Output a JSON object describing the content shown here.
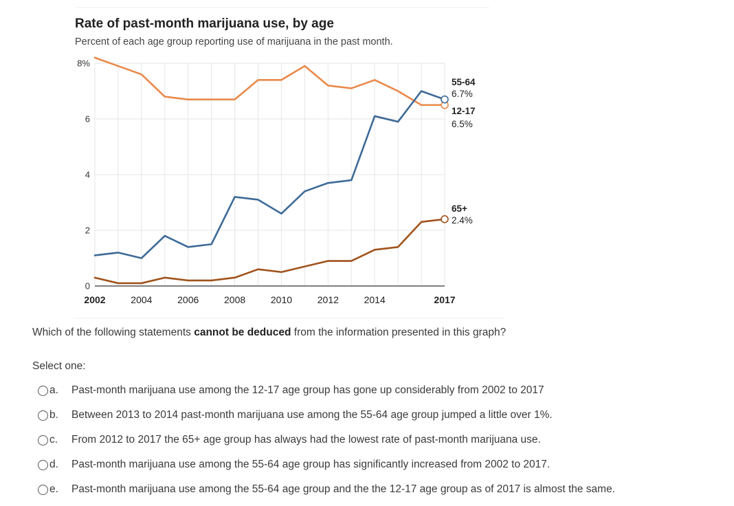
{
  "chart_data": {
    "type": "line",
    "title": "Rate of past-month marijuana use, by age",
    "subtitle": "Percent of each age group reporting use of marijuana in the past month.",
    "ylim": [
      0,
      8
    ],
    "y_ticks": [
      "0",
      "2",
      "4",
      "6",
      "8%"
    ],
    "x_ticks": [
      "2002",
      "2004",
      "2006",
      "2008",
      "2010",
      "2012",
      "2014",
      "2017"
    ],
    "x": [
      2002,
      2003,
      2004,
      2005,
      2006,
      2007,
      2008,
      2009,
      2010,
      2011,
      2012,
      2013,
      2014,
      2015,
      2016,
      2017
    ],
    "grid": true,
    "series": [
      {
        "name": "12-17",
        "color": "#e8894a",
        "end_label": "12-17",
        "end_value_label": "6.5%",
        "values": [
          8.2,
          7.9,
          7.6,
          6.8,
          6.7,
          6.7,
          6.7,
          7.4,
          7.4,
          7.9,
          7.2,
          7.1,
          7.4,
          7.0,
          6.5,
          6.5
        ]
      },
      {
        "name": "55-64",
        "color": "#3d6a97",
        "end_label": "55-64",
        "end_value_label": "6.7%",
        "values": [
          1.1,
          1.2,
          1.0,
          1.8,
          1.4,
          1.5,
          3.2,
          3.1,
          2.6,
          3.4,
          3.7,
          3.8,
          6.1,
          5.9,
          7.0,
          6.7
        ]
      },
      {
        "name": "65+",
        "color": "#a0521b",
        "end_label": "65+",
        "end_value_label": "2.4%",
        "values": [
          0.3,
          0.1,
          0.1,
          0.3,
          0.2,
          0.2,
          0.3,
          0.6,
          0.5,
          0.7,
          0.9,
          0.9,
          1.3,
          1.4,
          2.3,
          2.4
        ]
      }
    ]
  },
  "question": {
    "prefix": "Which of the following statements ",
    "emphasis": "cannot be deduced",
    "suffix": " from the information presented in this graph?"
  },
  "select_label": "Select one:",
  "options": [
    {
      "letter": "a.",
      "text": "Past-month marijuana use among the 12-17 age group has gone up considerably from 2002 to 2017"
    },
    {
      "letter": "b.",
      "text": "Between 2013 to 2014 past-month marijuana use among the 55-64 age group jumped a little over 1%."
    },
    {
      "letter": "c.",
      "text": "From 2012 to 2017 the 65+ age group has always had the lowest rate of past-month marijuana use."
    },
    {
      "letter": "d.",
      "text": "Past-month marijuana use among the 55-64 age group has significantly increased from 2002 to 2017."
    },
    {
      "letter": "e.",
      "text": "Past-month marijuana use among the 55-64 age group and the the 12-17 age group as of 2017 is almost the same."
    }
  ]
}
